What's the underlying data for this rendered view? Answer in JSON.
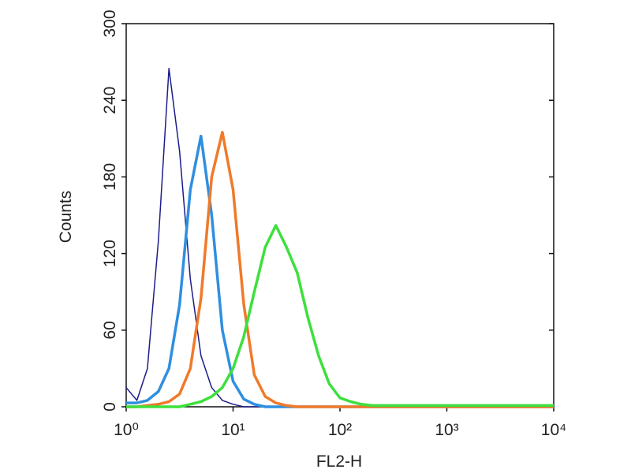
{
  "chart_data": {
    "type": "line",
    "xlabel": "FL2-H",
    "ylabel": "Counts",
    "xscale": "log",
    "xlim": [
      1,
      10000
    ],
    "ylim": [
      0,
      300
    ],
    "xticks": [
      {
        "value": 1,
        "label": "10⁰"
      },
      {
        "value": 10,
        "label": "10¹"
      },
      {
        "value": 100,
        "label": "10²"
      },
      {
        "value": 1000,
        "label": "10³"
      },
      {
        "value": 10000,
        "label": "10⁴"
      }
    ],
    "yticks": [
      0,
      60,
      120,
      180,
      240,
      300
    ],
    "grid": false,
    "x": [
      1,
      1.26,
      1.58,
      2,
      2.51,
      3.16,
      3.98,
      5.01,
      6.31,
      7.94,
      10,
      12.6,
      15.8,
      20,
      25.1,
      31.6,
      39.8,
      50.1,
      63.1,
      79.4,
      100,
      126,
      158,
      200,
      251,
      316,
      398,
      501,
      631,
      794,
      1000,
      1260,
      1580,
      2000,
      2510,
      3160,
      3980,
      5010,
      6310,
      7940,
      10000
    ],
    "series": [
      {
        "color": "#1c1c8c",
        "values": [
          15,
          5,
          30,
          130,
          265,
          200,
          100,
          40,
          15,
          5,
          2,
          0,
          0,
          0,
          0,
          0,
          0,
          0,
          0,
          0,
          0,
          0,
          0,
          0,
          0,
          0,
          0,
          0,
          0,
          0,
          0,
          0,
          0,
          0,
          0,
          0,
          0,
          0,
          0,
          0,
          0
        ]
      },
      {
        "color": "#2f8fe0",
        "values": [
          3,
          3,
          5,
          12,
          30,
          80,
          170,
          212,
          150,
          60,
          20,
          6,
          2,
          0,
          0,
          0,
          0,
          0,
          0,
          0,
          0,
          0,
          0,
          0,
          0,
          0,
          0,
          0,
          0,
          0,
          0,
          0,
          0,
          0,
          0,
          0,
          0,
          0,
          0,
          0,
          0
        ]
      },
      {
        "color": "#f07a2a",
        "values": [
          0,
          0,
          1,
          2,
          4,
          10,
          30,
          85,
          180,
          215,
          170,
          80,
          25,
          8,
          3,
          1,
          0,
          0,
          0,
          0,
          0,
          0,
          0,
          0,
          0,
          0,
          0,
          0,
          0,
          0,
          0,
          0,
          0,
          0,
          0,
          0,
          0,
          0,
          0,
          0,
          0
        ]
      },
      {
        "color": "#3de03d",
        "values": [
          0,
          0,
          0,
          0,
          0,
          0,
          2,
          4,
          8,
          15,
          30,
          55,
          90,
          125,
          142,
          125,
          105,
          70,
          40,
          18,
          7,
          4,
          2,
          1,
          1,
          1,
          1,
          1,
          1,
          1,
          1,
          1,
          1,
          1,
          1,
          1,
          1,
          1,
          1,
          1,
          1
        ]
      }
    ]
  }
}
